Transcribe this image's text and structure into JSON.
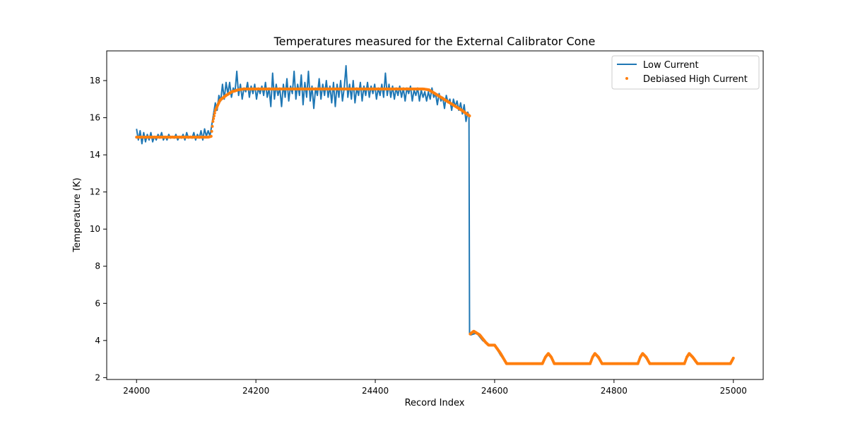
{
  "chart_data": {
    "type": "line",
    "title": "Temperatures measured for the External Calibrator Cone",
    "xlabel": "Record Index",
    "ylabel": "Temperature (K)",
    "xlim": [
      23950,
      25050
    ],
    "ylim": [
      1.9,
      19.6
    ],
    "x_ticks": [
      24000,
      24200,
      24400,
      24600,
      24800,
      25000
    ],
    "y_ticks": [
      2,
      4,
      6,
      8,
      10,
      12,
      14,
      16,
      18
    ],
    "legend_position": "top-right",
    "colors": {
      "low_current": "#1f77b4",
      "high_current": "#ff7f0e"
    },
    "series": [
      {
        "name": "Low Current",
        "kind": "line",
        "color": "#1f77b4",
        "points": [
          [
            24000,
            15.4
          ],
          [
            24003,
            14.8
          ],
          [
            24006,
            15.3
          ],
          [
            24009,
            14.6
          ],
          [
            24012,
            15.2
          ],
          [
            24015,
            14.7
          ],
          [
            24018,
            15.1
          ],
          [
            24021,
            14.8
          ],
          [
            24024,
            15.2
          ],
          [
            24027,
            14.7
          ],
          [
            24030,
            15.0
          ],
          [
            24033,
            14.8
          ],
          [
            24036,
            15.1
          ],
          [
            24039,
            14.9
          ],
          [
            24042,
            15.2
          ],
          [
            24045,
            14.8
          ],
          [
            24048,
            15.0
          ],
          [
            24051,
            14.8
          ],
          [
            24054,
            15.1
          ],
          [
            24057,
            14.9
          ],
          [
            24060,
            15.0
          ],
          [
            24063,
            14.9
          ],
          [
            24066,
            15.1
          ],
          [
            24069,
            14.8
          ],
          [
            24072,
            15.0
          ],
          [
            24075,
            14.9
          ],
          [
            24078,
            15.1
          ],
          [
            24081,
            14.8
          ],
          [
            24084,
            15.2
          ],
          [
            24087,
            14.9
          ],
          [
            24090,
            15.0
          ],
          [
            24093,
            14.9
          ],
          [
            24096,
            15.2
          ],
          [
            24099,
            14.8
          ],
          [
            24102,
            15.1
          ],
          [
            24105,
            14.9
          ],
          [
            24108,
            15.3
          ],
          [
            24111,
            14.8
          ],
          [
            24114,
            15.4
          ],
          [
            24117,
            15.0
          ],
          [
            24120,
            15.3
          ],
          [
            24123,
            15.0
          ],
          [
            24126,
            15.6
          ],
          [
            24129,
            16.2
          ],
          [
            24132,
            16.8
          ],
          [
            24135,
            16.4
          ],
          [
            24138,
            17.2
          ],
          [
            24141,
            16.9
          ],
          [
            24144,
            17.8
          ],
          [
            24147,
            17.0
          ],
          [
            24150,
            17.9
          ],
          [
            24153,
            17.3
          ],
          [
            24156,
            17.9
          ],
          [
            24159,
            17.1
          ],
          [
            24162,
            17.6
          ],
          [
            24165,
            17.4
          ],
          [
            24168,
            18.5
          ],
          [
            24171,
            17.2
          ],
          [
            24174,
            17.8
          ],
          [
            24177,
            17.0
          ],
          [
            24180,
            17.6
          ],
          [
            24183,
            17.4
          ],
          [
            24186,
            17.9
          ],
          [
            24189,
            17.1
          ],
          [
            24192,
            17.7
          ],
          [
            24195,
            17.3
          ],
          [
            24198,
            17.8
          ],
          [
            24201,
            17.0
          ],
          [
            24204,
            17.6
          ],
          [
            24207,
            17.3
          ],
          [
            24210,
            17.7
          ],
          [
            24213,
            17.2
          ],
          [
            24216,
            17.9
          ],
          [
            24219,
            17.1
          ],
          [
            24222,
            17.6
          ],
          [
            24225,
            16.6
          ],
          [
            24228,
            18.4
          ],
          [
            24231,
            17.0
          ],
          [
            24234,
            17.8
          ],
          [
            24237,
            17.2
          ],
          [
            24240,
            17.6
          ],
          [
            24243,
            16.6
          ],
          [
            24246,
            17.8
          ],
          [
            24249,
            17.1
          ],
          [
            24252,
            18.1
          ],
          [
            24255,
            16.9
          ],
          [
            24258,
            17.7
          ],
          [
            24261,
            17.3
          ],
          [
            24264,
            18.5
          ],
          [
            24267,
            17.0
          ],
          [
            24270,
            17.8
          ],
          [
            24273,
            17.2
          ],
          [
            24276,
            18.3
          ],
          [
            24279,
            16.7
          ],
          [
            24282,
            17.9
          ],
          [
            24285,
            17.1
          ],
          [
            24288,
            18.5
          ],
          [
            24291,
            16.9
          ],
          [
            24294,
            17.7
          ],
          [
            24297,
            16.5
          ],
          [
            24300,
            17.6
          ],
          [
            24303,
            17.2
          ],
          [
            24306,
            18.1
          ],
          [
            24309,
            17.0
          ],
          [
            24312,
            17.8
          ],
          [
            24315,
            17.2
          ],
          [
            24318,
            18.0
          ],
          [
            24321,
            17.1
          ],
          [
            24324,
            17.7
          ],
          [
            24327,
            16.8
          ],
          [
            24330,
            17.9
          ],
          [
            24333,
            16.6
          ],
          [
            24336,
            17.8
          ],
          [
            24339,
            17.1
          ],
          [
            24342,
            18.0
          ],
          [
            24345,
            16.9
          ],
          [
            24348,
            17.6
          ],
          [
            24351,
            18.8
          ],
          [
            24354,
            17.1
          ],
          [
            24357,
            17.8
          ],
          [
            24360,
            17.0
          ],
          [
            24363,
            18.0
          ],
          [
            24366,
            16.8
          ],
          [
            24369,
            17.6
          ],
          [
            24372,
            17.2
          ],
          [
            24375,
            17.9
          ],
          [
            24378,
            16.9
          ],
          [
            24381,
            17.7
          ],
          [
            24384,
            17.2
          ],
          [
            24387,
            17.9
          ],
          [
            24390,
            17.1
          ],
          [
            24393,
            17.7
          ],
          [
            24396,
            17.3
          ],
          [
            24399,
            17.8
          ],
          [
            24402,
            17.0
          ],
          [
            24405,
            17.6
          ],
          [
            24408,
            17.2
          ],
          [
            24411,
            17.8
          ],
          [
            24414,
            17.1
          ],
          [
            24417,
            18.4
          ],
          [
            24420,
            17.2
          ],
          [
            24423,
            17.8
          ],
          [
            24426,
            17.1
          ],
          [
            24429,
            17.7
          ],
          [
            24432,
            17.0
          ],
          [
            24435,
            17.6
          ],
          [
            24438,
            17.2
          ],
          [
            24441,
            17.7
          ],
          [
            24444,
            17.1
          ],
          [
            24447,
            17.6
          ],
          [
            24450,
            16.9
          ],
          [
            24453,
            17.6
          ],
          [
            24456,
            17.3
          ],
          [
            24459,
            17.7
          ],
          [
            24462,
            16.9
          ],
          [
            24465,
            17.5
          ],
          [
            24468,
            17.2
          ],
          [
            24471,
            17.6
          ],
          [
            24474,
            16.9
          ],
          [
            24477,
            17.5
          ],
          [
            24480,
            17.1
          ],
          [
            24483,
            17.4
          ],
          [
            24486,
            16.9
          ],
          [
            24489,
            17.4
          ],
          [
            24492,
            17.0
          ],
          [
            24495,
            17.6
          ],
          [
            24498,
            17.1
          ],
          [
            24501,
            17.3
          ],
          [
            24504,
            16.7
          ],
          [
            24507,
            17.3
          ],
          [
            24510,
            16.9
          ],
          [
            24513,
            17.1
          ],
          [
            24516,
            16.5
          ],
          [
            24519,
            17.2
          ],
          [
            24522,
            16.8
          ],
          [
            24525,
            17.0
          ],
          [
            24528,
            16.4
          ],
          [
            24531,
            17.0
          ],
          [
            24534,
            16.6
          ],
          [
            24537,
            16.9
          ],
          [
            24540,
            16.4
          ],
          [
            24543,
            16.8
          ],
          [
            24546,
            16.2
          ],
          [
            24549,
            16.7
          ],
          [
            24552,
            15.8
          ],
          [
            24555,
            16.3
          ],
          [
            24557,
            16.1
          ],
          [
            24558,
            4.4
          ],
          [
            24560,
            4.3
          ],
          [
            24570,
            4.4
          ],
          [
            24580,
            4.0
          ],
          [
            24590,
            3.75
          ],
          [
            24600,
            3.75
          ],
          [
            24610,
            3.2
          ],
          [
            24620,
            2.75
          ],
          [
            24680,
            2.75
          ],
          [
            24690,
            3.3
          ],
          [
            24700,
            2.75
          ],
          [
            24760,
            2.75
          ],
          [
            24768,
            3.3
          ],
          [
            24780,
            2.75
          ],
          [
            24840,
            2.75
          ],
          [
            24848,
            3.3
          ],
          [
            24860,
            2.75
          ],
          [
            24918,
            2.75
          ],
          [
            24926,
            3.3
          ],
          [
            24940,
            2.75
          ],
          [
            24995,
            2.75
          ],
          [
            25000,
            3.1
          ]
        ]
      },
      {
        "name": "Debiased High Current",
        "kind": "scatter",
        "color": "#ff7f0e",
        "points": [
          [
            24000,
            14.95
          ],
          [
            24040,
            14.95
          ],
          [
            24080,
            14.95
          ],
          [
            24120,
            14.95
          ],
          [
            24125,
            15.0
          ],
          [
            24128,
            15.8
          ],
          [
            24132,
            16.4
          ],
          [
            24140,
            16.95
          ],
          [
            24150,
            17.2
          ],
          [
            24160,
            17.4
          ],
          [
            24170,
            17.5
          ],
          [
            24180,
            17.55
          ],
          [
            24200,
            17.55
          ],
          [
            24300,
            17.55
          ],
          [
            24400,
            17.55
          ],
          [
            24480,
            17.55
          ],
          [
            24490,
            17.5
          ],
          [
            24500,
            17.3
          ],
          [
            24515,
            17.0
          ],
          [
            24530,
            16.7
          ],
          [
            24545,
            16.4
          ],
          [
            24558,
            16.1
          ],
          [
            24559,
            4.35
          ],
          [
            24565,
            4.5
          ],
          [
            24575,
            4.3
          ],
          [
            24585,
            3.9
          ],
          [
            24590,
            3.75
          ],
          [
            24600,
            3.75
          ],
          [
            24610,
            3.3
          ],
          [
            24620,
            2.75
          ],
          [
            24680,
            2.75
          ],
          [
            24685,
            3.1
          ],
          [
            24690,
            3.3
          ],
          [
            24695,
            3.1
          ],
          [
            24700,
            2.75
          ],
          [
            24760,
            2.75
          ],
          [
            24764,
            3.1
          ],
          [
            24768,
            3.3
          ],
          [
            24774,
            3.1
          ],
          [
            24780,
            2.75
          ],
          [
            24840,
            2.75
          ],
          [
            24844,
            3.1
          ],
          [
            24848,
            3.3
          ],
          [
            24854,
            3.1
          ],
          [
            24860,
            2.75
          ],
          [
            24918,
            2.75
          ],
          [
            24922,
            3.1
          ],
          [
            24926,
            3.3
          ],
          [
            24932,
            3.1
          ],
          [
            24940,
            2.75
          ],
          [
            24995,
            2.75
          ],
          [
            25000,
            3.05
          ]
        ]
      }
    ]
  }
}
